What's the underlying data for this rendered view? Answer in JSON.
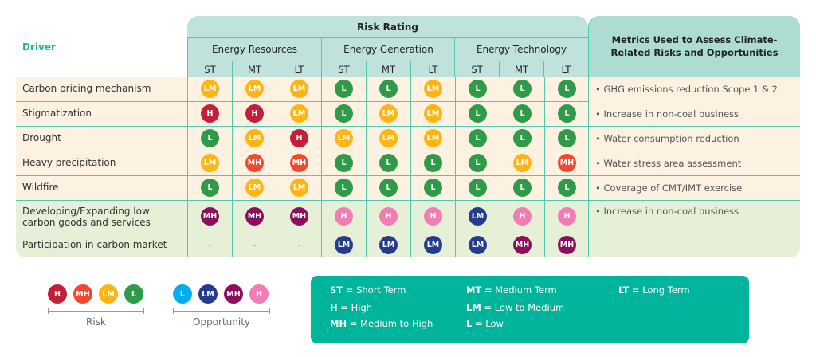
{
  "header": {
    "risk_rating": "Risk Rating",
    "driver": "Driver",
    "metrics": "Metrics Used to Assess Climate-Related Risks and Opportunities",
    "groups": [
      "Energy Resources",
      "Energy Generation",
      "Energy Technology"
    ],
    "terms": [
      "ST",
      "MT",
      "LT"
    ]
  },
  "colors": {
    "risk": {
      "H": "#c1203a",
      "MH": "#ef4a2e",
      "LM": "#fdb515",
      "L": "#2f9b48"
    },
    "opportunity": {
      "L": "#00aeef",
      "LM": "#253c8e",
      "MH": "#8c0e5f",
      "H": "#f07db3"
    },
    "risk_row_bg": "#fdf1e2",
    "opportunity_row_bg": "#e5f0d7",
    "accent": "#00b59b"
  },
  "rows": [
    {
      "driver": "Carbon pricing mechanism",
      "type": "risk",
      "ratings": [
        "LM",
        "LM",
        "LM",
        "L",
        "L",
        "LM",
        "L",
        "L",
        "L"
      ]
    },
    {
      "driver": "Stigmatization",
      "type": "risk",
      "ratings": [
        "H",
        "H",
        "LM",
        "L",
        "LM",
        "LM",
        "L",
        "L",
        "L"
      ]
    },
    {
      "driver": "Drought",
      "type": "risk",
      "ratings": [
        "L",
        "LM",
        "H",
        "LM",
        "LM",
        "LM",
        "L",
        "L",
        "L"
      ]
    },
    {
      "driver": "Heavy precipitation",
      "type": "risk",
      "ratings": [
        "LM",
        "MH",
        "MH",
        "L",
        "L",
        "L",
        "L",
        "LM",
        "MH"
      ]
    },
    {
      "driver": "Wildfire",
      "type": "risk",
      "ratings": [
        "L",
        "LM",
        "LM",
        "L",
        "L",
        "L",
        "L",
        "L",
        "L"
      ]
    },
    {
      "driver": "Developing/Expanding low carbon goods and services",
      "type": "opportunity",
      "ratings": [
        "MH",
        "MH",
        "MH",
        "H",
        "H",
        "H",
        "LM",
        "H",
        "H"
      ]
    },
    {
      "driver": "Participation in carbon market",
      "type": "opportunity",
      "ratings": [
        "-",
        "-",
        "-",
        "LM",
        "LM",
        "LM",
        "LM",
        "MH",
        "MH"
      ]
    }
  ],
  "metrics": [
    "• GHG emissions reduction Scope 1 & 2",
    "• Increase in non-coal business",
    "• Water consumption reduction",
    "• Water stress area assessment",
    "• Coverage of CMT/IMT exercise",
    "• Increase in non-coal business"
  ],
  "legend": {
    "risk_label": "Risk",
    "opportunity_label": "Opportunity",
    "risk_items": [
      "H",
      "MH",
      "LM",
      "L"
    ],
    "opportunity_items": [
      "L",
      "LM",
      "MH",
      "H"
    ]
  },
  "key": [
    {
      "abbr": "ST",
      "text": " = Short Term"
    },
    {
      "abbr": "MT",
      "text": " = Medium Term"
    },
    {
      "abbr": "LT",
      "text": " = Long Term"
    },
    {
      "abbr": "H",
      "text": " = High"
    },
    {
      "abbr": "LM",
      "text": " = Low to Medium"
    },
    {
      "abbr": "MH",
      "text": " = Medium to High"
    },
    {
      "abbr": "L",
      "text": " = Low"
    }
  ]
}
